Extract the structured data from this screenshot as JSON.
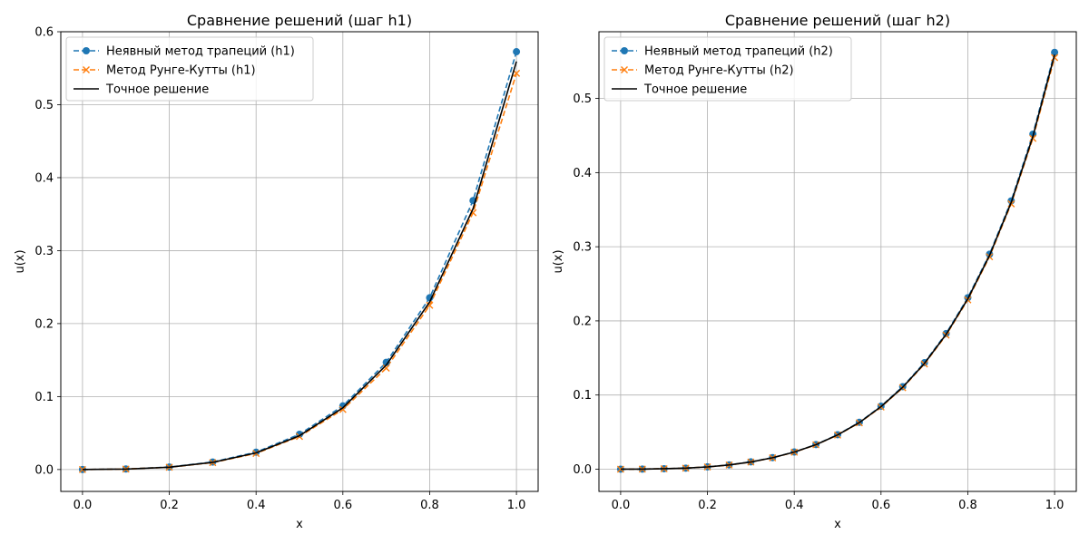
{
  "colors": {
    "implicit": "#1f77b4",
    "rk": "#ff7f0e",
    "exact": "#000000",
    "grid": "#b0b0b0"
  },
  "chart_data": [
    {
      "type": "line",
      "title": "Сравнение решений (шаг h1)",
      "xlabel": "x",
      "ylabel": "u(x)",
      "xlim": [
        -0.05,
        1.05
      ],
      "ylim": [
        -0.03,
        0.6
      ],
      "xticks": [
        0.0,
        0.2,
        0.4,
        0.6,
        0.8,
        1.0
      ],
      "xtick_labels": [
        "0.0",
        "0.2",
        "0.4",
        "0.6",
        "0.8",
        "1.0"
      ],
      "yticks": [
        0.0,
        0.1,
        0.2,
        0.3,
        0.4,
        0.5,
        0.6
      ],
      "ytick_labels": [
        "0.0",
        "0.1",
        "0.2",
        "0.3",
        "0.4",
        "0.5",
        "0.6"
      ],
      "grid": true,
      "legend_position": "upper-left",
      "x": [
        0.0,
        0.1,
        0.2,
        0.3,
        0.4,
        0.5,
        0.6,
        0.7,
        0.8,
        0.9,
        1.0
      ],
      "series": [
        {
          "name": "Неявный метод трапеций (h1)",
          "style": "dashed",
          "marker": "circle",
          "values": [
            0.0,
            0.0007,
            0.0034,
            0.0103,
            0.0238,
            0.0483,
            0.0872,
            0.1469,
            0.2354,
            0.3686,
            0.5726
          ]
        },
        {
          "name": "Метод Рунге-Кутты (h1)",
          "style": "dashed",
          "marker": "x",
          "values": [
            0.0,
            0.0006,
            0.0031,
            0.0095,
            0.0221,
            0.0453,
            0.0823,
            0.139,
            0.225,
            0.352,
            0.543
          ]
        },
        {
          "name": "Точное решение",
          "style": "solid",
          "marker": "none",
          "values": [
            0.0,
            0.0006,
            0.0032,
            0.0098,
            0.0228,
            0.0463,
            0.0846,
            0.1431,
            0.2296,
            0.3574,
            0.5592
          ]
        }
      ]
    },
    {
      "type": "line",
      "title": "Сравнение решений (шаг h2)",
      "xlabel": "x",
      "ylabel": "u(x)",
      "xlim": [
        -0.05,
        1.05
      ],
      "ylim": [
        -0.03,
        0.59
      ],
      "xticks": [
        0.0,
        0.2,
        0.4,
        0.6,
        0.8,
        1.0
      ],
      "xtick_labels": [
        "0.0",
        "0.2",
        "0.4",
        "0.6",
        "0.8",
        "1.0"
      ],
      "yticks": [
        0.0,
        0.1,
        0.2,
        0.3,
        0.4,
        0.5
      ],
      "ytick_labels": [
        "0.0",
        "0.1",
        "0.2",
        "0.3",
        "0.4",
        "0.5"
      ],
      "grid": true,
      "legend_position": "upper-left",
      "x": [
        0.0,
        0.05,
        0.1,
        0.15,
        0.2,
        0.25,
        0.3,
        0.35,
        0.4,
        0.45,
        0.5,
        0.55,
        0.6,
        0.65,
        0.7,
        0.75,
        0.8,
        0.85,
        0.9,
        0.95,
        1.0
      ],
      "series": [
        {
          "name": "Неявный метод трапеций (h2)",
          "style": "dashed",
          "marker": "circle",
          "values": [
            0.0,
            0.0001,
            0.0006,
            0.0014,
            0.0031,
            0.0058,
            0.0099,
            0.0156,
            0.0232,
            0.0332,
            0.0465,
            0.0632,
            0.0849,
            0.1113,
            0.1436,
            0.183,
            0.2313,
            0.2899,
            0.3618,
            0.4518,
            0.5622
          ]
        },
        {
          "name": "Метод Рунге-Кутты (h2)",
          "style": "dashed",
          "marker": "x",
          "values": [
            0.0,
            0.0001,
            0.0006,
            0.0014,
            0.003,
            0.0056,
            0.0096,
            0.0153,
            0.0229,
            0.0329,
            0.046,
            0.0625,
            0.0838,
            0.1098,
            0.1418,
            0.1808,
            0.2284,
            0.2865,
            0.3578,
            0.4462,
            0.5551
          ]
        },
        {
          "name": "Точное решение",
          "style": "solid",
          "marker": "none",
          "values": [
            0.0,
            0.0001,
            0.0006,
            0.0014,
            0.003,
            0.0057,
            0.0097,
            0.0154,
            0.023,
            0.033,
            0.0462,
            0.0628,
            0.0843,
            0.1105,
            0.1426,
            0.1818,
            0.2297,
            0.2881,
            0.3597,
            0.4488,
            0.559
          ]
        }
      ]
    }
  ]
}
